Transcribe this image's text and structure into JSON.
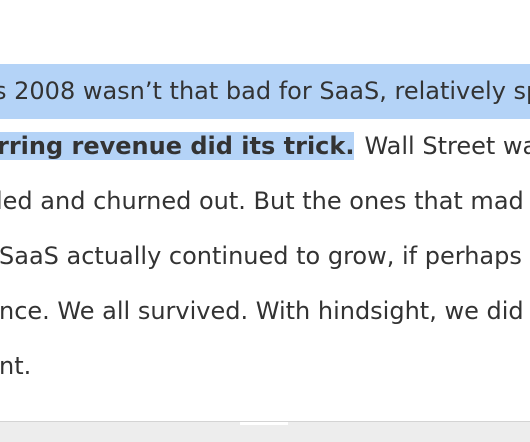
{
  "article": {
    "line1": "s 2008 wasn’t that bad for SaaS, relatively sp",
    "line2_highlighted": "rring revenue did its trick.",
    "line2_rest": "Wall Street was",
    "line3": "led and churned out.  But the ones that mad",
    "line4": "SaaS actually continued to grow, if perhaps f",
    "line5": "nce.  We all survived.  With hindsight, we did",
    "line6": "nt."
  },
  "colors": {
    "selection_highlight": "#b4d3f7",
    "text": "#333333"
  }
}
